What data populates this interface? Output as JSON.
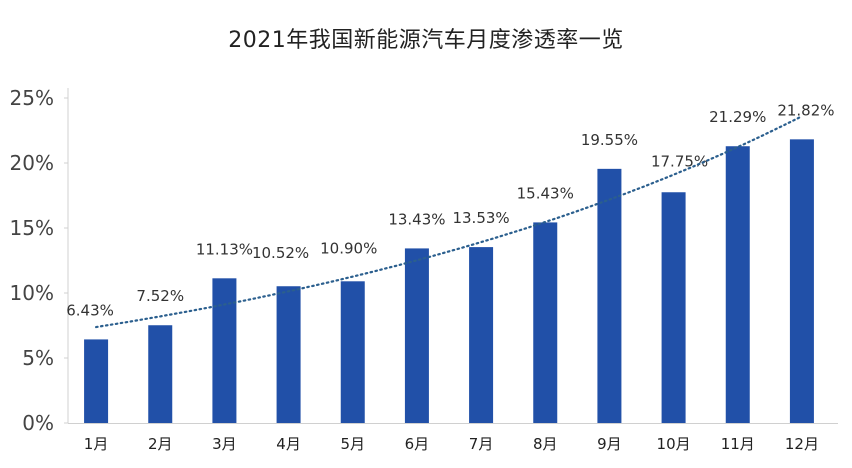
{
  "chart_data": {
    "type": "bar",
    "title": "2021年我国新能源汽车月度渗透率一览",
    "xlabel": "",
    "ylabel": "",
    "categories": [
      "1月",
      "2月",
      "3月",
      "4月",
      "5月",
      "6月",
      "7月",
      "8月",
      "9月",
      "10月",
      "11月",
      "12月"
    ],
    "values": [
      6.43,
      7.52,
      11.13,
      10.52,
      10.9,
      13.43,
      13.53,
      15.43,
      19.55,
      17.75,
      21.29,
      21.82
    ],
    "value_labels": [
      "6.43%",
      "7.52%",
      "11.13%",
      "10.52%",
      "10.90%",
      "13.43%",
      "13.53%",
      "15.43%",
      "19.55%",
      "17.75%",
      "21.29%",
      "21.82%"
    ],
    "yticks": [
      0,
      5,
      10,
      15,
      20,
      25
    ],
    "ytick_labels": [
      "0%",
      "5%",
      "10%",
      "15%",
      "20%",
      "25%"
    ],
    "ylim": [
      0,
      25
    ],
    "trendline": {
      "style": "dotted",
      "type": "trend"
    },
    "grid": false,
    "bar_color": "#2150A8",
    "trend_color": "#2B5F8E"
  }
}
